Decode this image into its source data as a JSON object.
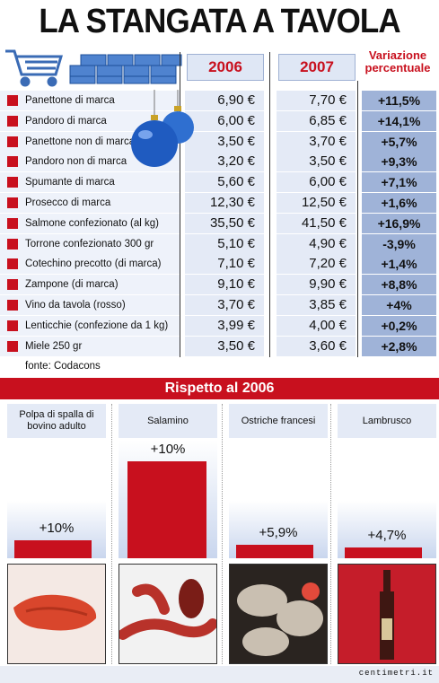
{
  "title": "LA STANGATA A TAVOLA",
  "table": {
    "col_2006": "2006",
    "col_2007": "2007",
    "col_var": "Variazione percentuale",
    "rows": [
      {
        "name": "Panettone di marca",
        "v2006": "6,90 €",
        "v2007": "7,70 €",
        "var": "+11,5%"
      },
      {
        "name": "Pandoro di marca",
        "v2006": "6,00 €",
        "v2007": "6,85 €",
        "var": "+14,1%"
      },
      {
        "name": "Panettone non di marca",
        "v2006": "3,50 €",
        "v2007": "3,70 €",
        "var": "+5,7%"
      },
      {
        "name": "Pandoro non di marca",
        "v2006": "3,20 €",
        "v2007": "3,50 €",
        "var": "+9,3%"
      },
      {
        "name": "Spumante di marca",
        "v2006": "5,60 €",
        "v2007": "6,00 €",
        "var": "+7,1%"
      },
      {
        "name": "Prosecco di marca",
        "v2006": "12,30 €",
        "v2007": "12,50 €",
        "var": "+1,6%"
      },
      {
        "name": "Salmone confezionato (al kg)",
        "v2006": "35,50 €",
        "v2007": "41,50 €",
        "var": "+16,9%"
      },
      {
        "name": "Torrone confezionato 300 gr",
        "v2006": "5,10 €",
        "v2007": "4,90 €",
        "var": "-3,9%"
      },
      {
        "name": "Cotechino precotto (di marca)",
        "v2006": "7,10 €",
        "v2007": "7,20 €",
        "var": "+1,4%"
      },
      {
        "name": "Zampone (di marca)",
        "v2006": "9,10 €",
        "v2007": "9,90 €",
        "var": "+8,8%"
      },
      {
        "name": "Vino da tavola (rosso)",
        "v2006": "3,70 €",
        "v2007": "3,85 €",
        "var": "+4%"
      },
      {
        "name": "Lenticchie (confezione da 1 kg)",
        "v2006": "3,99 €",
        "v2007": "4,00 €",
        "var": "+0,2%"
      },
      {
        "name": "Miele 250 gr",
        "v2006": "3,50 €",
        "v2007": "3,60 €",
        "var": "+2,8%"
      }
    ],
    "source": "fonte: Codacons"
  },
  "chart_data": {
    "type": "bar",
    "title": "Rispetto al 2006",
    "categories": [
      "Polpa di spalla di bovino adulto",
      "Salamino",
      "Ostriche francesi",
      "Lambrusco"
    ],
    "values": [
      10,
      10,
      5.9,
      4.7
    ],
    "labels": [
      "+10%",
      "+10%",
      "+5,9%",
      "+4,7%"
    ]
  },
  "footer": "centimetri.it",
  "colors": {
    "accent": "#c8101e",
    "table_bg": "#e4eaf6",
    "var_bg": "#9fb3d8"
  }
}
